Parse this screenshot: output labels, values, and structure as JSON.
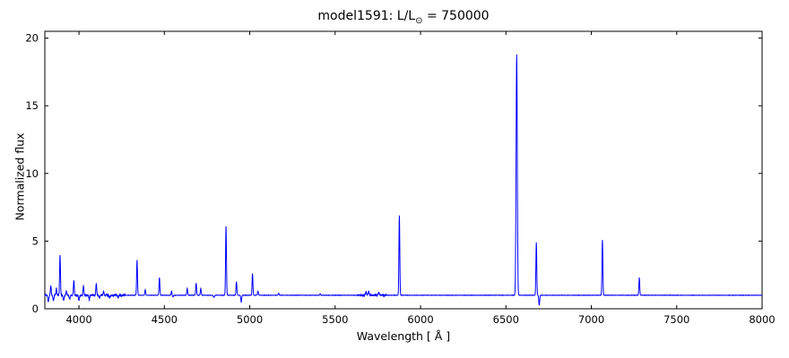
{
  "figure": {
    "title_prefix": "model1591: L/L",
    "title_sub": "⊙",
    "title_suffix": " = 750000",
    "xlabel": "Wavelength [ Å ]",
    "ylabel": "Normalized flux"
  },
  "chart_data": {
    "type": "line",
    "title": "model1591: L/L⊙ = 750000",
    "xlabel": "Wavelength [ Å ]",
    "ylabel": "Normalized flux",
    "xlim": [
      3800,
      8000
    ],
    "ylim": [
      0,
      20.5
    ],
    "x_ticks": [
      4000,
      4500,
      5000,
      5500,
      6000,
      6500,
      7000,
      7500,
      8000
    ],
    "y_ticks": [
      0,
      5,
      10,
      15,
      20
    ],
    "line_color": "#0000ff",
    "axis_color": "#000000",
    "continuum": 1.0,
    "emission_lines": [
      {
        "x": 3835,
        "flux": 1.7,
        "w": 2.5
      },
      {
        "x": 3868,
        "flux": 1.5,
        "w": 2.5
      },
      {
        "x": 3889,
        "flux": 4.0,
        "w": 2.5
      },
      {
        "x": 3926,
        "flux": 1.3,
        "w": 2.5
      },
      {
        "x": 3970,
        "flux": 2.1,
        "w": 2.5
      },
      {
        "x": 4026,
        "flux": 1.7,
        "w": 2.5
      },
      {
        "x": 4101,
        "flux": 1.9,
        "w": 2.5
      },
      {
        "x": 4144,
        "flux": 1.3,
        "w": 2.5
      },
      {
        "x": 4340,
        "flux": 3.6,
        "w": 2.5
      },
      {
        "x": 4388,
        "flux": 1.4,
        "w": 2.5
      },
      {
        "x": 4471,
        "flux": 2.3,
        "w": 2.5
      },
      {
        "x": 4542,
        "flux": 1.3,
        "w": 2.5
      },
      {
        "x": 4634,
        "flux": 1.5,
        "w": 2.5
      },
      {
        "x": 4686,
        "flux": 1.9,
        "w": 2.5
      },
      {
        "x": 4713,
        "flux": 1.5,
        "w": 2.5
      },
      {
        "x": 4861,
        "flux": 6.1,
        "w": 2.5
      },
      {
        "x": 4922,
        "flux": 2.0,
        "w": 2.5
      },
      {
        "x": 5016,
        "flux": 2.6,
        "w": 2.5
      },
      {
        "x": 5048,
        "flux": 1.3,
        "w": 2.5
      },
      {
        "x": 5169,
        "flux": 1.15,
        "w": 2.5
      },
      {
        "x": 5412,
        "flux": 1.1,
        "w": 2.5
      },
      {
        "x": 5680,
        "flux": 1.25,
        "w": 3
      },
      {
        "x": 5696,
        "flux": 1.3,
        "w": 3
      },
      {
        "x": 5755,
        "flux": 1.2,
        "w": 3
      },
      {
        "x": 5876,
        "flux": 6.9,
        "w": 2.5
      },
      {
        "x": 6563,
        "flux": 18.8,
        "w": 3.5
      },
      {
        "x": 6678,
        "flux": 4.9,
        "w": 2.5
      },
      {
        "x": 7065,
        "flux": 5.1,
        "w": 2.5
      },
      {
        "x": 7281,
        "flux": 2.3,
        "w": 2.5
      }
    ],
    "absorption_dips": [
      {
        "x": 3820,
        "depth": 0.5,
        "w": 3
      },
      {
        "x": 3850,
        "depth": 0.4,
        "w": 3
      },
      {
        "x": 3910,
        "depth": 0.35,
        "w": 3
      },
      {
        "x": 3945,
        "depth": 0.3,
        "w": 3
      },
      {
        "x": 4000,
        "depth": 0.35,
        "w": 3
      },
      {
        "x": 4060,
        "depth": 0.3,
        "w": 3
      },
      {
        "x": 4120,
        "depth": 0.25,
        "w": 3
      },
      {
        "x": 4180,
        "depth": 0.2,
        "w": 3
      },
      {
        "x": 4230,
        "depth": 0.15,
        "w": 3
      },
      {
        "x": 4550,
        "depth": 0.12,
        "w": 3
      },
      {
        "x": 4790,
        "depth": 0.15,
        "w": 3
      },
      {
        "x": 4950,
        "depth": 0.5,
        "w": 2.5
      },
      {
        "x": 6695,
        "depth": 0.75,
        "w": 2.5
      }
    ],
    "noise_regions": [
      {
        "from": 3800,
        "to": 4270,
        "amp": 0.07
      },
      {
        "from": 5630,
        "to": 5800,
        "amp": 0.05
      },
      {
        "from": 4270,
        "to": 8000,
        "amp": 0.012
      }
    ]
  }
}
